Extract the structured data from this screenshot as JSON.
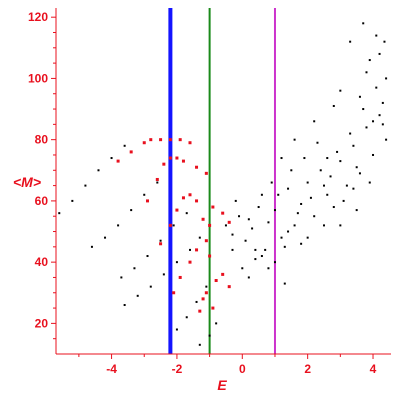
{
  "chart_data": {
    "type": "scatter",
    "title": "",
    "xlabel": "E",
    "ylabel": "<M>",
    "xlim": [
      -5.7,
      4.55
    ],
    "ylim": [
      10,
      123
    ],
    "x_ticks": [
      -4,
      -2,
      0,
      2,
      4
    ],
    "y_ticks": [
      20,
      40,
      60,
      80,
      100,
      120
    ],
    "grid": false,
    "legend": "none",
    "colors": {
      "axis": "#e8101e",
      "red_points": "#e8101e",
      "black_points": "#000000"
    },
    "vertical_lines": [
      {
        "x": -2.2,
        "color": "#1414ff"
      },
      {
        "x": -1.0,
        "color": "#1a8a1a"
      },
      {
        "x": 1.0,
        "color": "#cc33cc"
      }
    ],
    "series": [
      {
        "color": "#000000",
        "points": [
          [
            -5.6,
            56
          ],
          [
            -5.2,
            60
          ],
          [
            -4.8,
            65
          ],
          [
            -4.4,
            70
          ],
          [
            -4.0,
            74
          ],
          [
            -3.6,
            78
          ],
          [
            -4.6,
            45
          ],
          [
            -4.2,
            48
          ],
          [
            -3.8,
            52
          ],
          [
            -3.4,
            57
          ],
          [
            -3.0,
            62
          ],
          [
            -2.6,
            66
          ],
          [
            -3.7,
            35
          ],
          [
            -3.3,
            38
          ],
          [
            -2.9,
            42
          ],
          [
            -2.5,
            47
          ],
          [
            -2.1,
            52
          ],
          [
            -1.7,
            56
          ],
          [
            -3.6,
            26
          ],
          [
            -3.2,
            29
          ],
          [
            -2.8,
            32
          ],
          [
            -2.4,
            36
          ],
          [
            -2.0,
            40
          ],
          [
            -1.6,
            44
          ],
          [
            -1.3,
            48
          ],
          [
            -2.0,
            18
          ],
          [
            -1.7,
            22
          ],
          [
            -1.4,
            27
          ],
          [
            -1.1,
            32
          ],
          [
            -1.3,
            13
          ],
          [
            -1.0,
            16
          ],
          [
            -0.8,
            20
          ]
        ]
      },
      {
        "color": "#e8101e",
        "points": [
          [
            -3.8,
            73
          ],
          [
            -3.4,
            76
          ],
          [
            -3.0,
            79
          ],
          [
            -2.8,
            80
          ],
          [
            -2.5,
            80
          ],
          [
            -2.2,
            80
          ],
          [
            -1.9,
            80
          ],
          [
            -1.6,
            79
          ],
          [
            -2.9,
            60
          ],
          [
            -2.6,
            67
          ],
          [
            -2.4,
            72
          ],
          [
            -2.2,
            74
          ],
          [
            -2.0,
            74
          ],
          [
            -1.8,
            73
          ],
          [
            -1.4,
            71
          ],
          [
            -1.1,
            69
          ],
          [
            -2.5,
            46
          ],
          [
            -2.2,
            52
          ],
          [
            -2.0,
            57
          ],
          [
            -1.8,
            61
          ],
          [
            -1.6,
            62
          ],
          [
            -1.4,
            60
          ],
          [
            -1.2,
            54
          ],
          [
            -1.0,
            52
          ],
          [
            -2.1,
            30
          ],
          [
            -1.9,
            35
          ],
          [
            -1.6,
            40
          ],
          [
            -1.4,
            44
          ],
          [
            -1.1,
            47
          ],
          [
            -1.0,
            42
          ],
          [
            -0.9,
            58
          ],
          [
            -0.6,
            56
          ],
          [
            -0.4,
            53
          ],
          [
            -1.3,
            24
          ],
          [
            -1.1,
            30
          ],
          [
            -0.8,
            34
          ],
          [
            -0.6,
            36
          ],
          [
            -0.4,
            32
          ],
          [
            -1.2,
            28
          ],
          [
            -0.9,
            25
          ]
        ]
      },
      {
        "color": "#000000",
        "points": [
          [
            -0.5,
            52
          ],
          [
            -0.3,
            49
          ],
          [
            -0.1,
            55
          ],
          [
            0.1,
            47
          ],
          [
            0.3,
            51
          ],
          [
            0.5,
            58
          ],
          [
            0.7,
            44
          ],
          [
            -0.2,
            60
          ],
          [
            0.2,
            54
          ],
          [
            0.4,
            41
          ],
          [
            0.6,
            62
          ],
          [
            0.8,
            53
          ],
          [
            1.0,
            57
          ],
          [
            1.2,
            48
          ],
          [
            1.4,
            64
          ],
          [
            1.6,
            52
          ],
          [
            1.8,
            59
          ],
          [
            2.0,
            66
          ],
          [
            2.2,
            55
          ],
          [
            2.4,
            70
          ],
          [
            2.6,
            62
          ],
          [
            2.8,
            58
          ],
          [
            3.0,
            73
          ],
          [
            3.2,
            65
          ],
          [
            3.4,
            78
          ],
          [
            3.6,
            69
          ],
          [
            3.8,
            84
          ],
          [
            4.0,
            75
          ],
          [
            4.2,
            88
          ],
          [
            4.4,
            80
          ],
          [
            1.1,
            62
          ],
          [
            1.3,
            45
          ],
          [
            1.5,
            70
          ],
          [
            1.7,
            56
          ],
          [
            1.9,
            74
          ],
          [
            2.1,
            61
          ],
          [
            2.3,
            79
          ],
          [
            2.5,
            52
          ],
          [
            2.7,
            68
          ],
          [
            2.9,
            76
          ],
          [
            3.1,
            60
          ],
          [
            3.3,
            82
          ],
          [
            3.5,
            71
          ],
          [
            3.7,
            90
          ],
          [
            3.9,
            66
          ],
          [
            4.1,
            97
          ],
          [
            4.3,
            85
          ],
          [
            0.9,
            66
          ],
          [
            1.2,
            74
          ],
          [
            0.4,
            44
          ],
          [
            0.0,
            38
          ],
          [
            -0.3,
            44
          ],
          [
            0.2,
            35
          ],
          [
            0.8,
            38
          ],
          [
            1.4,
            50
          ],
          [
            2.0,
            48
          ],
          [
            2.6,
            74
          ],
          [
            3.0,
            52
          ],
          [
            3.4,
            64
          ],
          [
            3.8,
            102
          ],
          [
            3.9,
            106
          ],
          [
            4.1,
            114
          ],
          [
            4.2,
            108
          ],
          [
            3.7,
            118
          ],
          [
            3.3,
            112
          ],
          [
            4.35,
            112
          ],
          [
            4.4,
            100
          ],
          [
            2.8,
            91
          ],
          [
            2.2,
            86
          ],
          [
            1.6,
            80
          ],
          [
            3.0,
            96
          ],
          [
            3.6,
            94
          ],
          [
            4.0,
            86
          ],
          [
            4.3,
            92
          ],
          [
            3.5,
            57
          ],
          [
            2.5,
            65
          ],
          [
            1.8,
            46
          ],
          [
            1.0,
            40
          ],
          [
            1.3,
            33
          ],
          [
            0.6,
            42
          ]
        ]
      }
    ]
  }
}
